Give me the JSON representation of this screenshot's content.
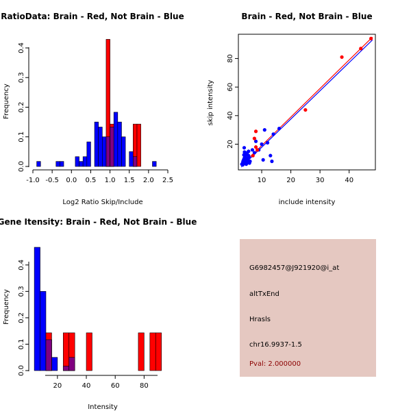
{
  "chart_data": [
    {
      "id": "ratio-hist",
      "type": "histogram",
      "title": "RatioData: Brain - Red, Not Brain - Blue",
      "xlabel": "Log2 Ratio Skip/Include",
      "ylabel": "Frequency",
      "xlim": [
        -1.0,
        2.5
      ],
      "ylim": [
        0,
        0.43
      ],
      "xticks": [
        "-1.0",
        "-0.5",
        "0.0",
        "0.5",
        "1.0",
        "1.5",
        "2.0",
        "2.5"
      ],
      "yticks": [
        "0.0",
        "0.1",
        "0.2",
        "0.3",
        "0.4"
      ],
      "bin_width": 0.1,
      "series": [
        {
          "name": "Not Brain",
          "color": "#0000ff",
          "bins": [
            [
              -0.9,
              0.017
            ],
            [
              -0.4,
              0.017
            ],
            [
              -0.3,
              0.017
            ],
            [
              0.1,
              0.033
            ],
            [
              0.2,
              0.017
            ],
            [
              0.3,
              0.033
            ],
            [
              0.4,
              0.083
            ],
            [
              0.6,
              0.15
            ],
            [
              0.7,
              0.133
            ],
            [
              0.8,
              0.1
            ],
            [
              0.9,
              0.1
            ],
            [
              1.0,
              0.133
            ],
            [
              1.1,
              0.183
            ],
            [
              1.2,
              0.15
            ],
            [
              1.3,
              0.1
            ],
            [
              1.5,
              0.05
            ],
            [
              1.6,
              0.033
            ],
            [
              2.1,
              0.017
            ]
          ]
        },
        {
          "name": "Brain",
          "color": "#ff0000",
          "bins": [
            [
              0.9,
              0.429
            ],
            [
              1.0,
              0.143
            ],
            [
              1.6,
              0.143
            ],
            [
              1.7,
              0.143
            ]
          ]
        }
      ]
    },
    {
      "id": "scatter",
      "type": "scatter",
      "title": "Brain - Red, Not Brain - Blue",
      "xlabel": "include intensity",
      "ylabel": "skip intensity",
      "xlim": [
        2,
        49
      ],
      "ylim": [
        2,
        97
      ],
      "xticks": [
        10,
        20,
        30,
        40
      ],
      "yticks": [
        20,
        40,
        60,
        80
      ],
      "series": [
        {
          "name": "Brain",
          "color": "#ff0000",
          "points": [
            [
              47.5,
              94
            ],
            [
              44,
              87
            ],
            [
              37.5,
              81
            ],
            [
              25,
              44
            ],
            [
              8,
              29
            ],
            [
              7.5,
              24
            ],
            [
              8,
              18
            ],
            [
              8.5,
              16
            ],
            [
              7,
              12
            ]
          ],
          "fit": [
            [
              3,
              5
            ],
            [
              48,
              95
            ]
          ]
        },
        {
          "name": "Not Brain",
          "color": "#0000ff",
          "points": [
            [
              3.5,
              7
            ],
            [
              3.6,
              8
            ],
            [
              3.8,
              9
            ],
            [
              4,
              10
            ],
            [
              4.2,
              11
            ],
            [
              4.5,
              12
            ],
            [
              4.6,
              13
            ],
            [
              4.8,
              10
            ],
            [
              5,
              14
            ],
            [
              5.2,
              9
            ],
            [
              5.5,
              15
            ],
            [
              5.6,
              11
            ],
            [
              6,
              8
            ],
            [
              3.2,
              6
            ],
            [
              3.5,
              5.5
            ],
            [
              4,
              6.5
            ],
            [
              4.4,
              7.5
            ],
            [
              4.7,
              6
            ],
            [
              5,
              7
            ],
            [
              5.3,
              8
            ],
            [
              5.8,
              6.8
            ],
            [
              4.2,
              9.5
            ],
            [
              3.9,
              12.5
            ],
            [
              4.1,
              14.5
            ],
            [
              4,
              17.5
            ],
            [
              5.5,
              12
            ],
            [
              6.8,
              16
            ],
            [
              7.5,
              14
            ],
            [
              8,
              22
            ],
            [
              9,
              16
            ],
            [
              10,
              20
            ],
            [
              10.5,
              9
            ],
            [
              11,
              30
            ],
            [
              12,
              21
            ],
            [
              13,
              12
            ],
            [
              13.5,
              8
            ],
            [
              14,
              27
            ],
            [
              16,
              31
            ]
          ],
          "fit": [
            [
              3,
              4
            ],
            [
              48,
              93
            ]
          ]
        }
      ]
    },
    {
      "id": "gene-hist",
      "type": "histogram",
      "title": "Gene Itensity: Brain - Red, Not Brain - Blue",
      "xlabel": "Intensity",
      "ylabel": "Frequency",
      "xlim": [
        3,
        95
      ],
      "ylim": [
        0,
        0.48
      ],
      "xticks": [
        20,
        40,
        60,
        80
      ],
      "yticks": [
        "0.0",
        "0.1",
        "0.2",
        "0.3",
        "0.4"
      ],
      "bin_width": 4,
      "series": [
        {
          "name": "Not Brain",
          "color": "#0000ff",
          "bins": [
            [
              4,
              0.467
            ],
            [
              8,
              0.3
            ],
            [
              12,
              0.117
            ],
            [
              16,
              0.05
            ],
            [
              24,
              0.017
            ],
            [
              28,
              0.05
            ]
          ]
        },
        {
          "name": "Brain",
          "color": "#ff0000",
          "bins": [
            [
              12,
              0.143
            ],
            [
              24,
              0.143
            ],
            [
              28,
              0.143
            ],
            [
              40,
              0.143
            ],
            [
              76,
              0.143
            ],
            [
              84,
              0.143
            ],
            [
              88,
              0.143
            ]
          ]
        }
      ]
    }
  ],
  "info": {
    "probe": "G6982457@J921920@i_at",
    "event": "altTxEnd",
    "gene": "Hrasls",
    "location": "chr16.9937-1.5",
    "pval": "Pval: 2.000000"
  },
  "colors": {
    "overlap": "#800080",
    "panel_bg": "#e5c8c1",
    "pval": "#8b0000"
  }
}
